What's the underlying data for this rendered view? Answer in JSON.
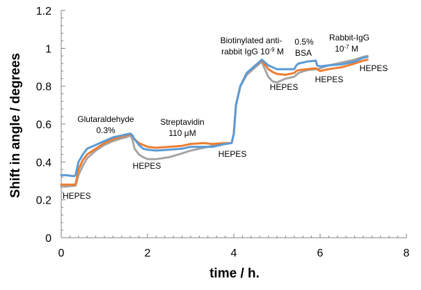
{
  "chart_data": {
    "type": "line",
    "title": "",
    "xlabel": "time / h.",
    "ylabel": "Shift in angle / degrees",
    "xlim": [
      0,
      8
    ],
    "ylim": [
      0,
      1.2
    ],
    "xticks": [
      "0",
      "2",
      "4",
      "6",
      "8"
    ],
    "yticks": [
      "0",
      "0.2",
      "0.4",
      "0.6",
      "0.8",
      "1",
      "1.2"
    ],
    "grid": false,
    "colors": {
      "blue": "#5b9bd5",
      "orange": "#ed7d31",
      "gray": "#a5a5a5",
      "axis": "#808080"
    },
    "series": [
      {
        "name": "blue",
        "color": "#5b9bd5",
        "points": [
          [
            0.0,
            0.33
          ],
          [
            0.1,
            0.33
          ],
          [
            0.3,
            0.325
          ],
          [
            0.33,
            0.33
          ],
          [
            0.4,
            0.4
          ],
          [
            0.5,
            0.44
          ],
          [
            0.6,
            0.47
          ],
          [
            0.8,
            0.49
          ],
          [
            1.0,
            0.51
          ],
          [
            1.2,
            0.53
          ],
          [
            1.4,
            0.54
          ],
          [
            1.5,
            0.545
          ],
          [
            1.6,
            0.55
          ],
          [
            1.65,
            0.54
          ],
          [
            1.7,
            0.52
          ],
          [
            1.8,
            0.49
          ],
          [
            1.9,
            0.47
          ],
          [
            2.0,
            0.465
          ],
          [
            2.2,
            0.46
          ],
          [
            2.5,
            0.465
          ],
          [
            2.8,
            0.47
          ],
          [
            3.0,
            0.48
          ],
          [
            3.2,
            0.48
          ],
          [
            3.5,
            0.48
          ],
          [
            3.8,
            0.495
          ],
          [
            3.95,
            0.5
          ],
          [
            4.0,
            0.55
          ],
          [
            4.05,
            0.7
          ],
          [
            4.15,
            0.8
          ],
          [
            4.3,
            0.87
          ],
          [
            4.5,
            0.91
          ],
          [
            4.65,
            0.94
          ],
          [
            4.7,
            0.93
          ],
          [
            4.8,
            0.91
          ],
          [
            4.9,
            0.9
          ],
          [
            5.0,
            0.89
          ],
          [
            5.2,
            0.89
          ],
          [
            5.4,
            0.89
          ],
          [
            5.45,
            0.91
          ],
          [
            5.5,
            0.92
          ],
          [
            5.7,
            0.93
          ],
          [
            5.9,
            0.935
          ],
          [
            5.93,
            0.91
          ],
          [
            6.0,
            0.905
          ],
          [
            6.2,
            0.91
          ],
          [
            6.5,
            0.915
          ],
          [
            6.8,
            0.93
          ],
          [
            7.0,
            0.95
          ],
          [
            7.1,
            0.955
          ]
        ]
      },
      {
        "name": "orange",
        "color": "#ed7d31",
        "points": [
          [
            0.0,
            0.28
          ],
          [
            0.1,
            0.28
          ],
          [
            0.33,
            0.28
          ],
          [
            0.4,
            0.36
          ],
          [
            0.5,
            0.41
          ],
          [
            0.6,
            0.44
          ],
          [
            0.8,
            0.47
          ],
          [
            1.0,
            0.5
          ],
          [
            1.2,
            0.52
          ],
          [
            1.4,
            0.535
          ],
          [
            1.5,
            0.54
          ],
          [
            1.6,
            0.545
          ],
          [
            1.65,
            0.54
          ],
          [
            1.7,
            0.52
          ],
          [
            1.8,
            0.5
          ],
          [
            1.9,
            0.49
          ],
          [
            2.0,
            0.48
          ],
          [
            2.2,
            0.475
          ],
          [
            2.5,
            0.48
          ],
          [
            2.8,
            0.485
          ],
          [
            3.0,
            0.495
          ],
          [
            3.3,
            0.5
          ],
          [
            3.5,
            0.495
          ],
          [
            3.8,
            0.5
          ],
          [
            3.95,
            0.5
          ],
          [
            4.0,
            0.55
          ],
          [
            4.05,
            0.7
          ],
          [
            4.15,
            0.8
          ],
          [
            4.3,
            0.87
          ],
          [
            4.5,
            0.91
          ],
          [
            4.65,
            0.935
          ],
          [
            4.7,
            0.92
          ],
          [
            4.8,
            0.89
          ],
          [
            4.9,
            0.875
          ],
          [
            5.0,
            0.865
          ],
          [
            5.2,
            0.86
          ],
          [
            5.4,
            0.87
          ],
          [
            5.45,
            0.88
          ],
          [
            5.5,
            0.885
          ],
          [
            5.7,
            0.89
          ],
          [
            5.9,
            0.895
          ],
          [
            5.93,
            0.89
          ],
          [
            6.0,
            0.88
          ],
          [
            6.2,
            0.89
          ],
          [
            6.5,
            0.9
          ],
          [
            6.8,
            0.92
          ],
          [
            7.0,
            0.935
          ],
          [
            7.1,
            0.94
          ]
        ]
      },
      {
        "name": "gray",
        "color": "#a5a5a5",
        "points": [
          [
            0.0,
            0.27
          ],
          [
            0.1,
            0.27
          ],
          [
            0.33,
            0.275
          ],
          [
            0.4,
            0.33
          ],
          [
            0.5,
            0.38
          ],
          [
            0.6,
            0.42
          ],
          [
            0.8,
            0.46
          ],
          [
            1.0,
            0.49
          ],
          [
            1.2,
            0.51
          ],
          [
            1.4,
            0.525
          ],
          [
            1.5,
            0.53
          ],
          [
            1.6,
            0.54
          ],
          [
            1.65,
            0.52
          ],
          [
            1.7,
            0.47
          ],
          [
            1.8,
            0.44
          ],
          [
            1.9,
            0.425
          ],
          [
            2.0,
            0.415
          ],
          [
            2.2,
            0.415
          ],
          [
            2.5,
            0.425
          ],
          [
            2.8,
            0.445
          ],
          [
            3.0,
            0.46
          ],
          [
            3.3,
            0.475
          ],
          [
            3.5,
            0.485
          ],
          [
            3.8,
            0.495
          ],
          [
            3.95,
            0.5
          ],
          [
            4.0,
            0.55
          ],
          [
            4.05,
            0.7
          ],
          [
            4.15,
            0.8
          ],
          [
            4.3,
            0.86
          ],
          [
            4.5,
            0.9
          ],
          [
            4.65,
            0.93
          ],
          [
            4.7,
            0.9
          ],
          [
            4.8,
            0.85
          ],
          [
            4.9,
            0.825
          ],
          [
            5.0,
            0.82
          ],
          [
            5.2,
            0.84
          ],
          [
            5.4,
            0.85
          ],
          [
            5.45,
            0.86
          ],
          [
            5.5,
            0.87
          ],
          [
            5.7,
            0.885
          ],
          [
            5.9,
            0.89
          ],
          [
            5.93,
            0.89
          ],
          [
            6.0,
            0.895
          ],
          [
            6.2,
            0.91
          ],
          [
            6.5,
            0.925
          ],
          [
            6.8,
            0.94
          ],
          [
            7.0,
            0.955
          ],
          [
            7.1,
            0.96
          ]
        ]
      }
    ],
    "annotations": [
      {
        "id": "hepes-1",
        "text": "HEPES",
        "sup": "",
        "tail": ""
      },
      {
        "id": "glut-1",
        "text": "Glutaraldehyde",
        "sup": "",
        "tail": ""
      },
      {
        "id": "glut-2",
        "text": "0.3%",
        "sup": "",
        "tail": ""
      },
      {
        "id": "hepes-2",
        "text": "HEPES",
        "sup": "",
        "tail": ""
      },
      {
        "id": "strep-1",
        "text": "Streptavidin",
        "sup": "",
        "tail": ""
      },
      {
        "id": "strep-2",
        "text": "110 μM",
        "sup": "",
        "tail": ""
      },
      {
        "id": "hepes-3",
        "text": "HEPES",
        "sup": "",
        "tail": ""
      },
      {
        "id": "biot-1",
        "text": "Biotinylated anti-",
        "sup": "",
        "tail": ""
      },
      {
        "id": "biot-2",
        "text": "rabbit IgG 10",
        "sup": "-9",
        "tail": " M"
      },
      {
        "id": "hepes-4",
        "text": "HEPES",
        "sup": "",
        "tail": ""
      },
      {
        "id": "bsa-1",
        "text": "0.5%",
        "sup": "",
        "tail": ""
      },
      {
        "id": "bsa-2",
        "text": "BSA",
        "sup": "",
        "tail": ""
      },
      {
        "id": "hepes-5",
        "text": "HEPES",
        "sup": "",
        "tail": ""
      },
      {
        "id": "rab-1",
        "text": "Rabbit-IgG",
        "sup": "",
        "tail": ""
      },
      {
        "id": "rab-2",
        "text": "10",
        "sup": "-7",
        "tail": " M"
      },
      {
        "id": "hepes-6",
        "text": "HEPES",
        "sup": "",
        "tail": ""
      }
    ]
  }
}
